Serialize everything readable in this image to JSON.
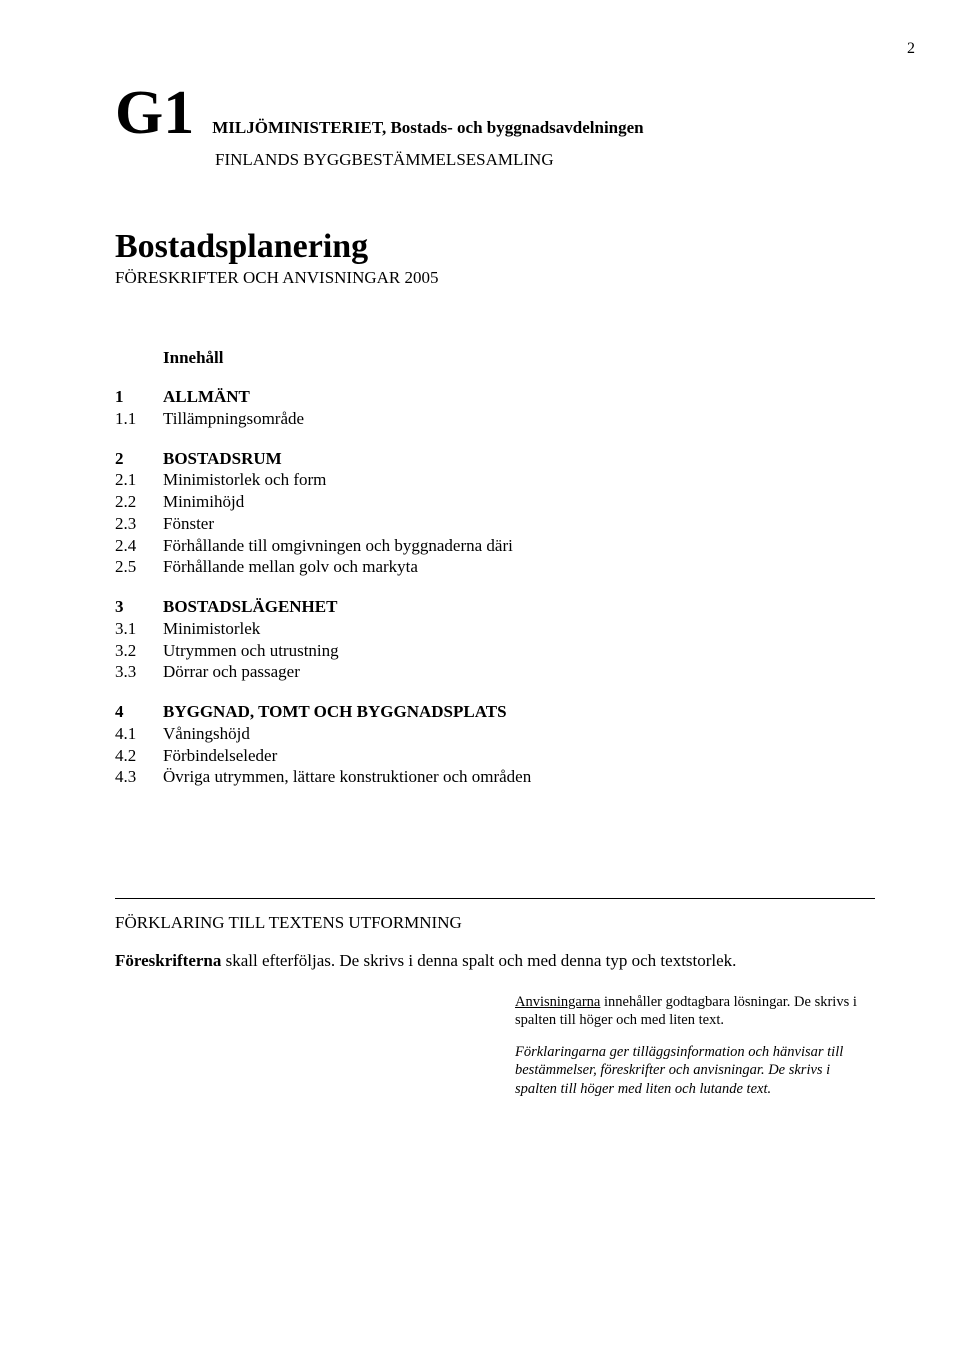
{
  "page_number": "2",
  "header": {
    "code": "G1",
    "ministry": "MILJÖMINISTERIET, Bostads- och byggnadsavdelningen",
    "collection": "FINLANDS BYGGBESTÄMMELSESAMLING",
    "title": "Bostadsplanering",
    "subtitle": "FÖRESKRIFTER OCH ANVISNINGAR 2005"
  },
  "toc_heading": "Innehåll",
  "toc": [
    {
      "num": "1",
      "label": "ALLMÄNT",
      "bold": true,
      "items": [
        {
          "num": "1.1",
          "label": "Tillämpningsområde"
        }
      ]
    },
    {
      "num": "2",
      "label": "BOSTADSRUM",
      "bold": true,
      "items": [
        {
          "num": "2.1",
          "label": "Minimistorlek och form"
        },
        {
          "num": "2.2",
          "label": "Minimihöjd"
        },
        {
          "num": "2.3",
          "label": "Fönster"
        },
        {
          "num": "2.4",
          "label": "Förhållande till omgivningen och byggnaderna däri"
        },
        {
          "num": "2.5",
          "label": "Förhållande mellan golv och markyta"
        }
      ]
    },
    {
      "num": "3",
      "label": "BOSTADSLÄGENHET",
      "bold": true,
      "items": [
        {
          "num": "3.1",
          "label": "Minimistorlek"
        },
        {
          "num": "3.2",
          "label": "Utrymmen och utrustning"
        },
        {
          "num": "3.3",
          "label": "Dörrar och passager"
        }
      ]
    },
    {
      "num": "4",
      "label": "BYGGNAD, TOMT OCH BYGGNADSPLATS",
      "bold": true,
      "items": [
        {
          "num": "4.1",
          "label": "Våningshöjd"
        },
        {
          "num": "4.2",
          "label": "Förbindelseleder"
        },
        {
          "num": "4.3",
          "label": "Övriga utrymmen, lättare konstruktioner och områden"
        }
      ]
    }
  ],
  "explain": {
    "heading": "FÖRKLARING TILL TEXTENS UTFORMNING",
    "p1_bold": "Föreskrifterna",
    "p1_rest": " skall efterföljas. De skrivs i denna spalt och med denna typ och textstorlek.",
    "p2_u": "Anvisningarna",
    "p2_rest": " innehåller godtagbara lösningar. De skrivs i spalten till höger och med liten text.",
    "p3_i": "Förklaringarna",
    "p3_rest": " ger tilläggsinformation och hänvisar till bestämmelser, föreskrifter och anvisningar. De skrivs i spalten till höger med liten och lutande text."
  }
}
